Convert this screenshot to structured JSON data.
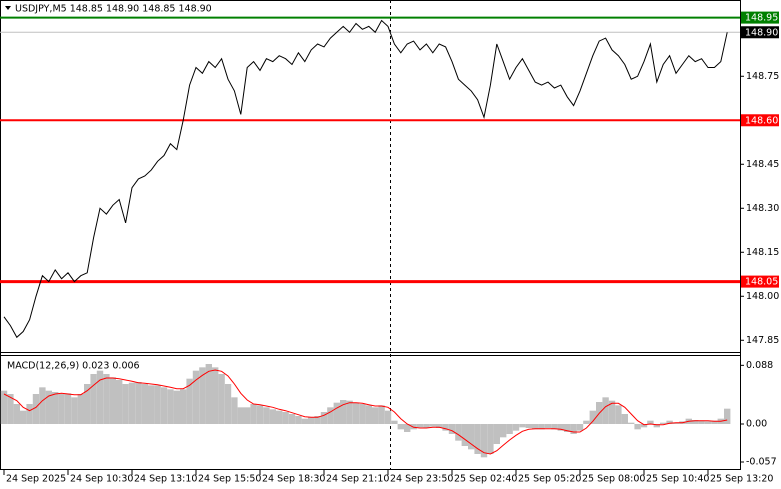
{
  "chart_data": [
    {
      "type": "line",
      "title": "USDJPY,M5  148.85 148.90 148.85 148.90",
      "color": "#000000",
      "categories": [
        "24 Sep 2025",
        null,
        null,
        null,
        null,
        null,
        null,
        null,
        null,
        null,
        "24 Sep 10:30",
        null,
        null,
        null,
        null,
        null,
        null,
        null,
        null,
        null,
        "24 Sep 13:10",
        null,
        null,
        null,
        null,
        null,
        null,
        null,
        null,
        null,
        "24 Sep 15:50",
        null,
        null,
        null,
        null,
        null,
        null,
        null,
        null,
        null,
        "24 Sep 18:30",
        null,
        null,
        null,
        null,
        null,
        null,
        null,
        null,
        null,
        "24 Sep 21:10",
        null,
        null,
        null,
        null,
        null,
        null,
        null,
        null,
        null,
        "24 Sep 23:50",
        null,
        null,
        null,
        null,
        null,
        null,
        null,
        null,
        null,
        "25 Sep 02:40",
        null,
        null,
        null,
        null,
        null,
        null,
        null,
        null,
        null,
        "25 Sep 05:20",
        null,
        null,
        null,
        null,
        null,
        null,
        null,
        null,
        null,
        "25 Sep 08:00",
        null,
        null,
        null,
        null,
        null,
        null,
        null,
        null,
        null,
        "25 Sep 10:40",
        null,
        null,
        null,
        null,
        null,
        null,
        null,
        null,
        null,
        "25 Sep 13:20",
        null,
        null,
        null
      ],
      "values": [
        147.93,
        147.9,
        147.86,
        147.88,
        147.92,
        148.0,
        148.07,
        148.05,
        148.09,
        148.06,
        148.08,
        148.05,
        148.07,
        148.08,
        148.2,
        148.3,
        148.28,
        148.31,
        148.33,
        148.25,
        148.37,
        148.4,
        148.41,
        148.43,
        148.46,
        148.48,
        148.52,
        148.5,
        148.6,
        148.72,
        148.78,
        148.76,
        148.8,
        148.78,
        148.81,
        148.74,
        148.7,
        148.62,
        148.78,
        148.8,
        148.77,
        148.81,
        148.8,
        148.82,
        148.81,
        148.79,
        148.83,
        148.8,
        148.84,
        148.86,
        148.85,
        148.88,
        148.9,
        148.92,
        148.9,
        148.93,
        148.91,
        148.92,
        148.9,
        148.94,
        148.92,
        148.86,
        148.83,
        148.86,
        148.87,
        148.84,
        148.86,
        148.83,
        148.86,
        148.85,
        148.8,
        148.74,
        148.72,
        148.7,
        148.67,
        148.61,
        148.72,
        148.86,
        148.8,
        148.74,
        148.78,
        148.81,
        148.77,
        148.73,
        148.72,
        148.73,
        148.71,
        148.72,
        148.68,
        148.65,
        148.7,
        148.76,
        148.82,
        148.87,
        148.88,
        148.84,
        148.82,
        148.79,
        148.74,
        148.75,
        148.8,
        148.86,
        148.73,
        148.79,
        148.82,
        148.76,
        148.79,
        148.82,
        148.8,
        148.81,
        148.78,
        148.78,
        148.8,
        148.9
      ],
      "ylim": [
        147.81,
        149.01
      ],
      "yticks": [
        {
          "value": 148.75,
          "label": "148.75"
        },
        {
          "value": 148.6,
          "label": "148.60"
        },
        {
          "value": 148.45,
          "label": "148.45"
        },
        {
          "value": 148.3,
          "label": "148.30"
        },
        {
          "value": 148.15,
          "label": "148.15"
        },
        {
          "value": 148.0,
          "label": "148.00"
        },
        {
          "value": 147.85,
          "label": "147.85"
        }
      ],
      "levels": [
        {
          "value": 148.95,
          "label": "148.95",
          "color": "#008000"
        },
        {
          "value": 148.6,
          "label": "148.60",
          "color": "#ff0000"
        },
        {
          "value": 148.05,
          "label": "148.05",
          "color": "#ff0000"
        },
        {
          "value": 148.9,
          "label": "148.90",
          "color": "#000000"
        }
      ]
    },
    {
      "type": "macd",
      "title": "MACD(12,26,9) 0.023 0.006",
      "histogram": {
        "color": "#c0c0c0",
        "values": [
          0.05,
          0.045,
          0.03,
          0.02,
          0.03,
          0.045,
          0.055,
          0.05,
          0.048,
          0.045,
          0.046,
          0.04,
          0.045,
          0.06,
          0.075,
          0.08,
          0.075,
          0.07,
          0.066,
          0.06,
          0.062,
          0.063,
          0.06,
          0.058,
          0.058,
          0.055,
          0.052,
          0.05,
          0.052,
          0.068,
          0.08,
          0.085,
          0.09,
          0.085,
          0.075,
          0.06,
          0.04,
          0.025,
          0.025,
          0.03,
          0.028,
          0.025,
          0.022,
          0.02,
          0.018,
          0.015,
          0.012,
          0.008,
          0.01,
          0.012,
          0.018,
          0.025,
          0.032,
          0.036,
          0.035,
          0.032,
          0.03,
          0.028,
          0.025,
          0.028,
          0.02,
          0.005,
          -0.008,
          -0.012,
          -0.008,
          -0.005,
          -0.006,
          -0.004,
          -0.006,
          -0.01,
          -0.015,
          -0.025,
          -0.033,
          -0.038,
          -0.045,
          -0.05,
          -0.045,
          -0.03,
          -0.02,
          -0.015,
          -0.01,
          -0.005,
          -0.006,
          -0.008,
          -0.008,
          -0.006,
          -0.008,
          -0.01,
          -0.012,
          -0.015,
          -0.01,
          0.005,
          0.02,
          0.033,
          0.04,
          0.035,
          0.028,
          0.015,
          0.002,
          -0.008,
          -0.005,
          0.005,
          -0.005,
          0.002,
          0.005,
          0.002,
          0.004,
          0.008,
          0.006,
          0.005,
          0.004,
          0.005,
          0.008,
          0.023
        ]
      },
      "signal": {
        "color": "#ff0000",
        "values": [
          0.045,
          0.04,
          0.035,
          0.025,
          0.02,
          0.025,
          0.035,
          0.042,
          0.045,
          0.046,
          0.045,
          0.044,
          0.044,
          0.05,
          0.058,
          0.066,
          0.069,
          0.069,
          0.068,
          0.066,
          0.064,
          0.062,
          0.061,
          0.06,
          0.059,
          0.057,
          0.055,
          0.053,
          0.053,
          0.058,
          0.066,
          0.073,
          0.079,
          0.081,
          0.079,
          0.072,
          0.06,
          0.046,
          0.036,
          0.03,
          0.029,
          0.027,
          0.025,
          0.022,
          0.02,
          0.017,
          0.014,
          0.011,
          0.01,
          0.01,
          0.013,
          0.018,
          0.024,
          0.029,
          0.032,
          0.032,
          0.031,
          0.029,
          0.027,
          0.027,
          0.025,
          0.018,
          0.008,
          0.0,
          -0.005,
          -0.006,
          -0.006,
          -0.005,
          -0.005,
          -0.007,
          -0.01,
          -0.016,
          -0.023,
          -0.03,
          -0.037,
          -0.043,
          -0.045,
          -0.04,
          -0.032,
          -0.024,
          -0.017,
          -0.011,
          -0.008,
          -0.007,
          -0.007,
          -0.007,
          -0.007,
          -0.008,
          -0.01,
          -0.012,
          -0.012,
          -0.006,
          0.004,
          0.016,
          0.026,
          0.031,
          0.031,
          0.025,
          0.015,
          0.005,
          -0.001,
          0.0,
          -0.001,
          -0.001,
          0.001,
          0.002,
          0.002,
          0.004,
          0.005,
          0.005,
          0.005,
          0.004,
          0.004,
          0.006
        ]
      },
      "ylim": [
        -0.069,
        0.102
      ],
      "yticks": [
        {
          "value": 0.088,
          "label": "0.088"
        },
        {
          "value": 0,
          "label": "0.00"
        },
        {
          "value": -0.057,
          "label": "-0.057"
        }
      ]
    }
  ]
}
